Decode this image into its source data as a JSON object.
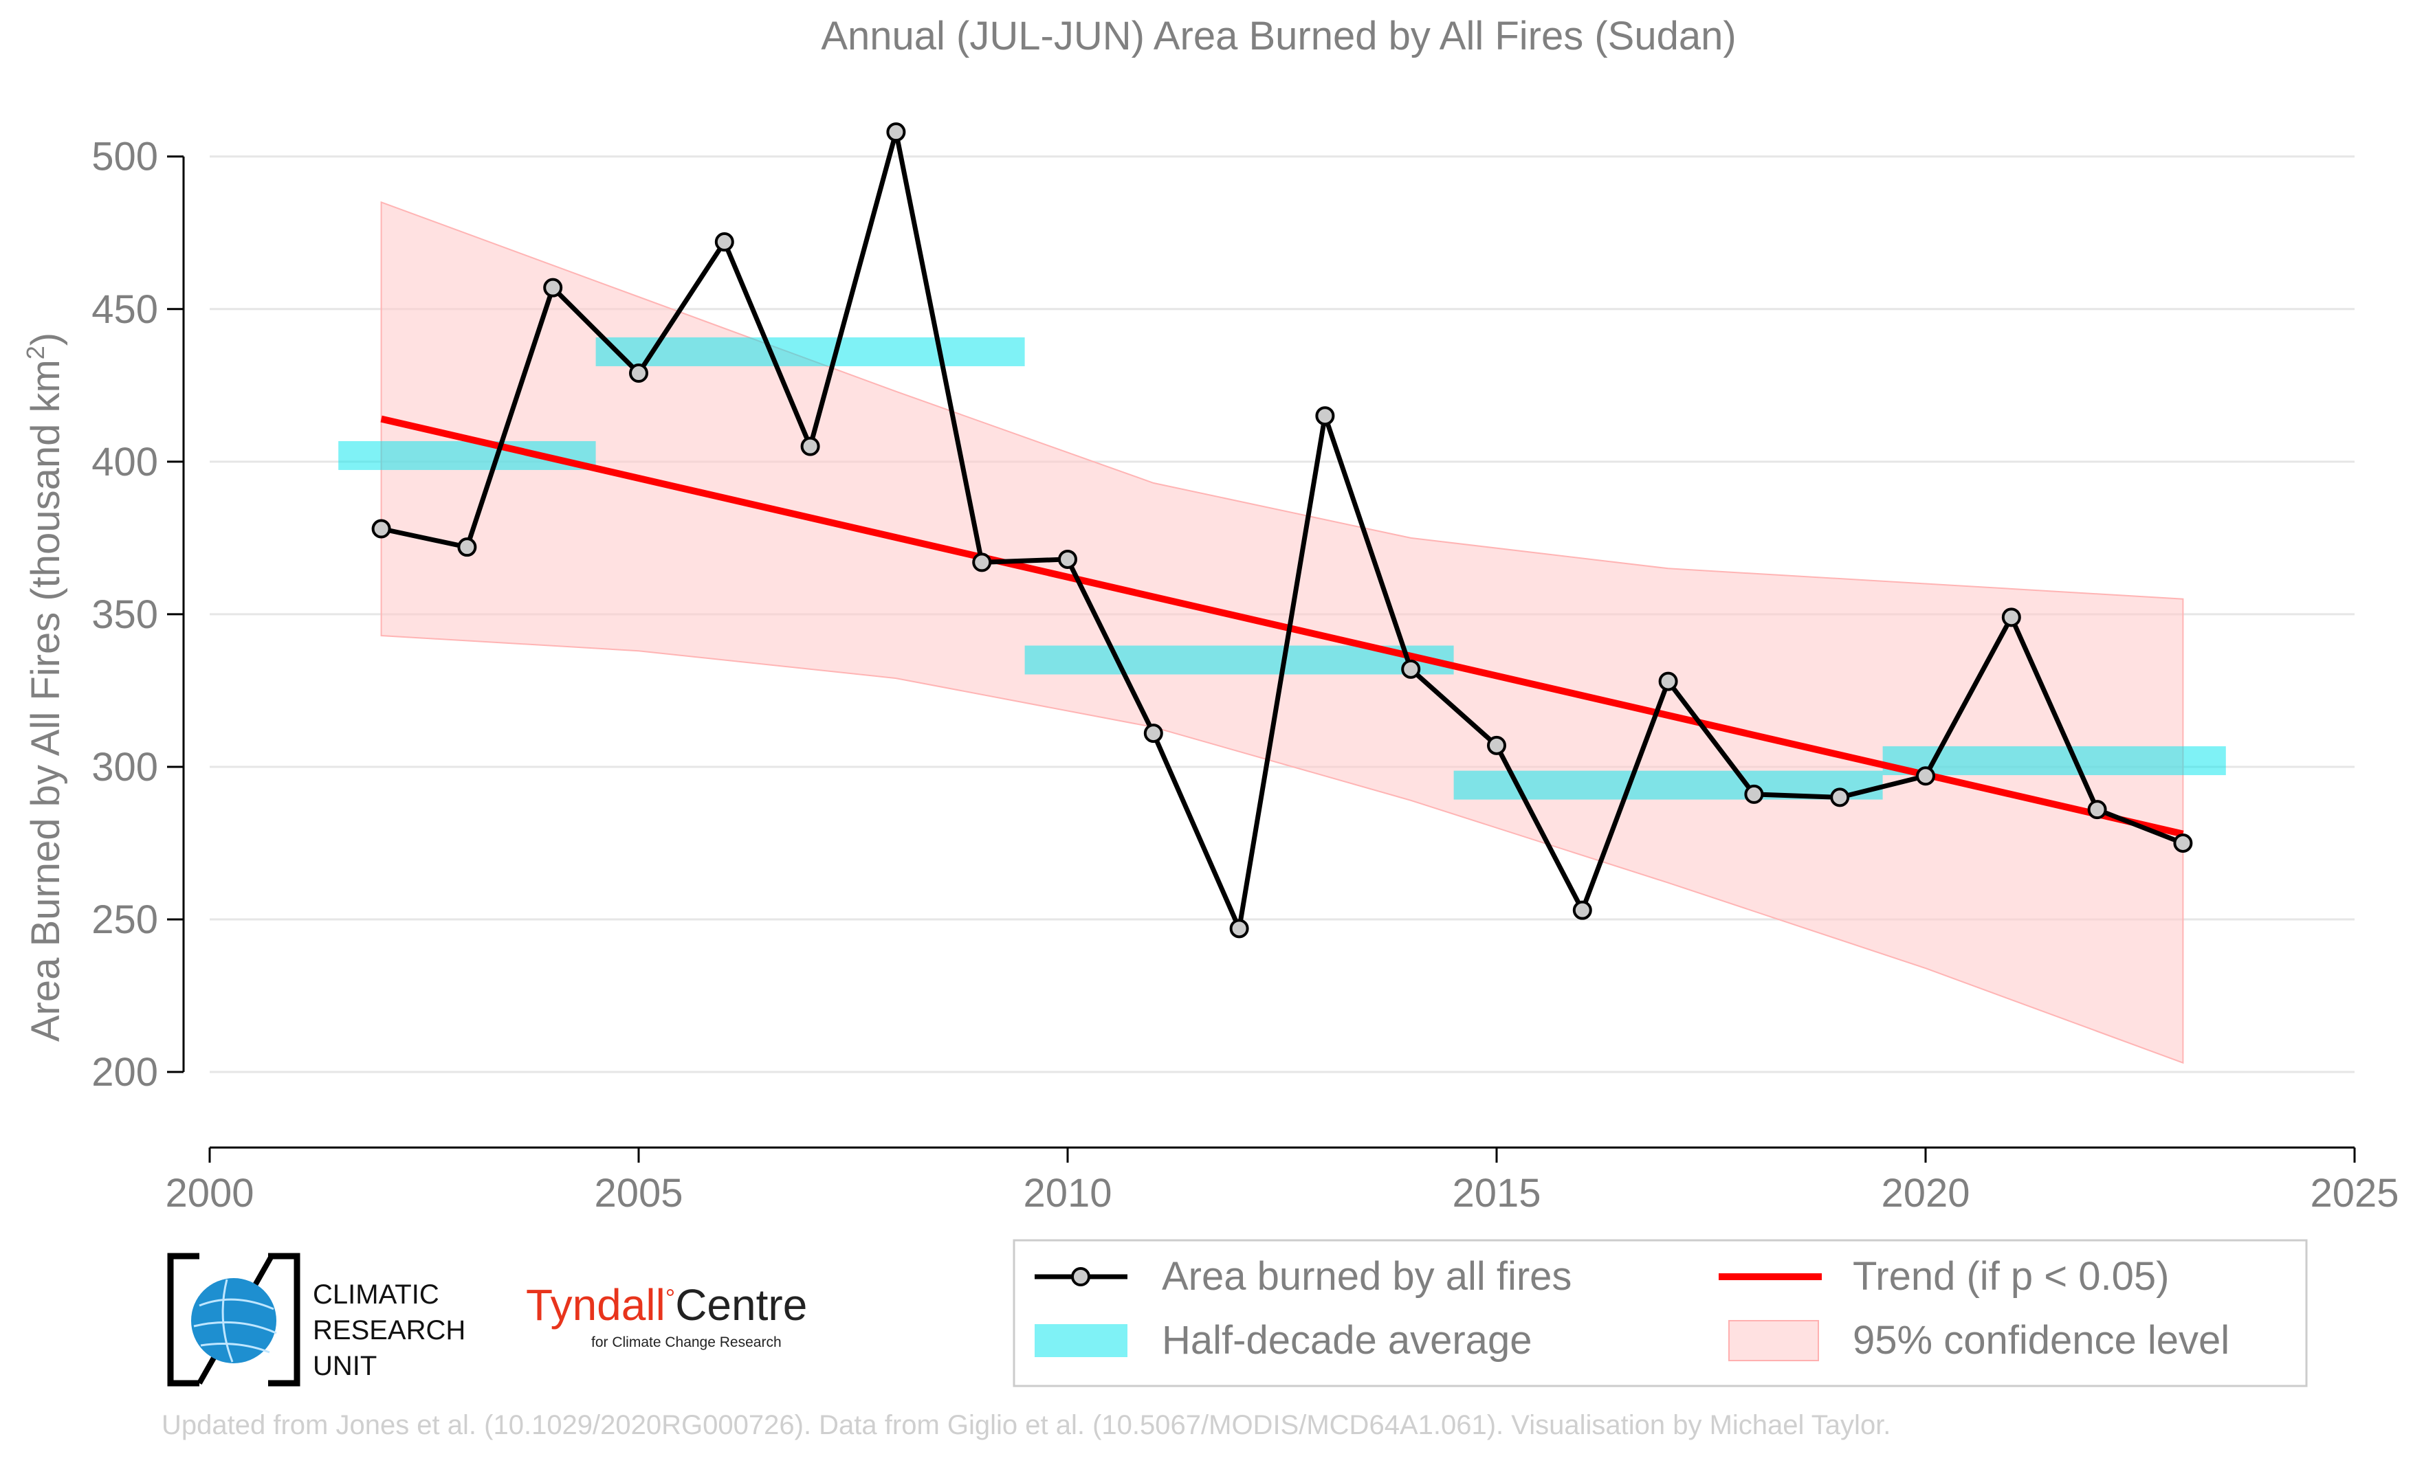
{
  "chart_data": {
    "type": "line",
    "title": "Annual (JUL-JUN) Area Burned by All Fires (Sudan)",
    "ylabel_main": "Area Burned by All Fires (thousand km",
    "ylabel_sup": "2",
    "ylabel_end": ")",
    "xlim": [
      2000,
      2025
    ],
    "ylim": [
      182,
      522
    ],
    "xticks": [
      2000,
      2005,
      2010,
      2015,
      2020,
      2025
    ],
    "yticks": [
      200,
      250,
      300,
      350,
      400,
      450,
      500
    ],
    "grid": "horizontal",
    "legend_position": "bottom-right",
    "series": [
      {
        "name": "Area burned by all fires",
        "color": "#000000",
        "marker_fill": "#cccccc",
        "x": [
          2002,
          2003,
          2004,
          2005,
          2006,
          2007,
          2008,
          2009,
          2010,
          2011,
          2012,
          2013,
          2014,
          2015,
          2016,
          2017,
          2018,
          2019,
          2020,
          2021,
          2022,
          2023
        ],
        "y": [
          378,
          372,
          457,
          429,
          472,
          405,
          508,
          367,
          368,
          311,
          247,
          415,
          332,
          307,
          253,
          328,
          291,
          290,
          297,
          349,
          286,
          275
        ]
      }
    ],
    "half_decade_average": {
      "name": "Half-decade average",
      "color": "#00e5ee",
      "segments": [
        {
          "x0": 2001.5,
          "x1": 2004.5,
          "y": 402
        },
        {
          "x0": 2004.5,
          "x1": 2009.5,
          "y": 436
        },
        {
          "x0": 2009.5,
          "x1": 2014.5,
          "y": 335
        },
        {
          "x0": 2014.5,
          "x1": 2019.5,
          "y": 294
        },
        {
          "x0": 2019.5,
          "x1": 2023.5,
          "y": 302
        }
      ]
    },
    "trend": {
      "name": "Trend (if p < 0.05)",
      "color": "#ff0000",
      "x": [
        2002,
        2023
      ],
      "y": [
        414,
        278
      ]
    },
    "confidence": {
      "name": "95% confidence level",
      "color": "#ffc8c8",
      "x": [
        2002,
        2005,
        2008,
        2011,
        2014,
        2017,
        2020,
        2023
      ],
      "lower": [
        343,
        338,
        329,
        313,
        289,
        262,
        234,
        203
      ],
      "upper": [
        485,
        454,
        423,
        393,
        375,
        365,
        360,
        355
      ]
    }
  },
  "logos": {
    "cru": [
      "CLIMATIC",
      "RESEARCH",
      "UNIT"
    ],
    "tyndall_part1": "Tyndall",
    "tyndall_deg": "°",
    "tyndall_part2": "Centre",
    "tyndall_sub": "for Climate Change Research"
  },
  "credit": "Updated from Jones et al. (10.1029/2020RG000726). Data from Giglio et al. (10.5067/MODIS/MCD64A1.061). Visualisation by Michael Taylor."
}
